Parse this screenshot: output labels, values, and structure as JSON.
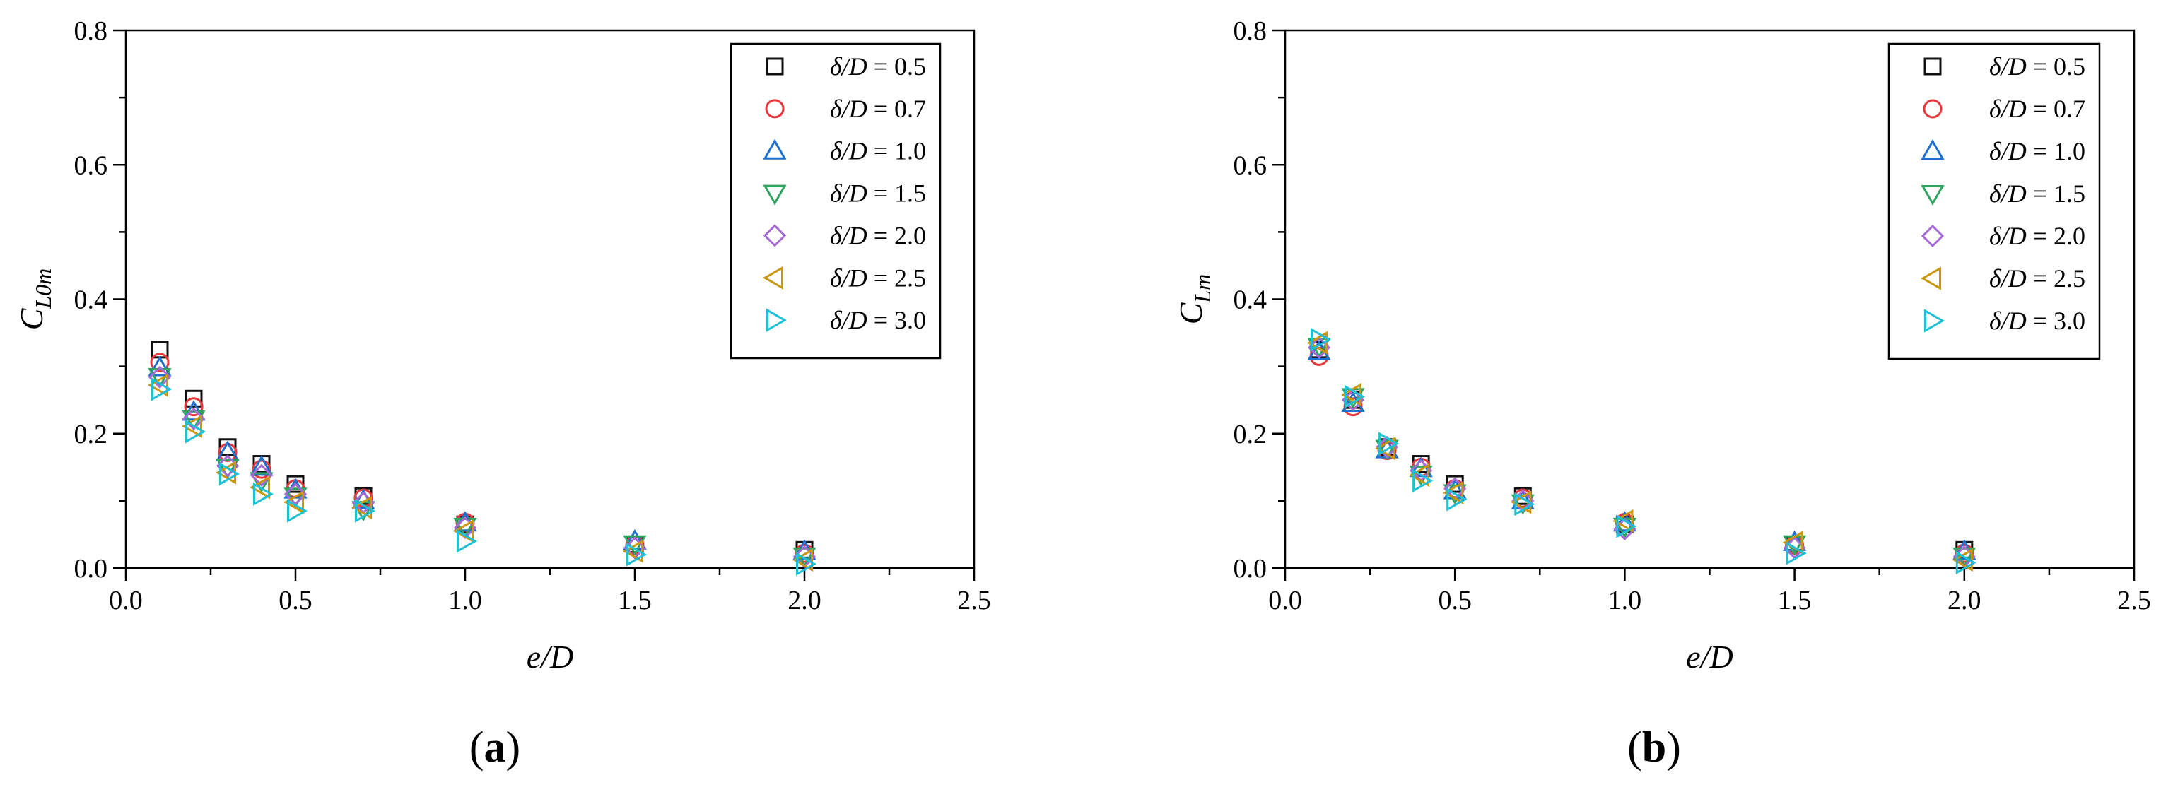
{
  "colors": {
    "d05": "#111111",
    "d07": "#e8383d",
    "d10": "#1f6fd1",
    "d15": "#2fa35f",
    "d20": "#a46ad6",
    "d25": "#c9960c",
    "d30": "#1fc0d6"
  },
  "legend_labels": [
    "δ/D = 0.5",
    "δ/D = 0.7",
    "δ/D = 1.0",
    "δ/D = 1.5",
    "δ/D = 2.0",
    "δ/D = 2.5",
    "δ/D = 3.0"
  ],
  "chart_data": [
    {
      "type": "scatter",
      "panel_label": "a",
      "xlabel": "e/D",
      "ylabel_main": "C",
      "ylabel_sub": "L0m",
      "xlim": [
        0.0,
        2.5
      ],
      "ylim": [
        0.0,
        0.8
      ],
      "xticks": [
        "0.0",
        "0.5",
        "1.0",
        "1.5",
        "2.0",
        "2.5"
      ],
      "yticks": [
        "0.0",
        "0.2",
        "0.4",
        "0.6",
        "0.8"
      ],
      "legend_position": "top-right",
      "x": [
        0.1,
        0.2,
        0.3,
        0.4,
        0.5,
        0.7,
        1.0,
        1.5,
        2.0
      ],
      "series": [
        {
          "name": "δ/D = 0.5",
          "marker": "square",
          "color_key": "d05",
          "values": [
            0.325,
            0.252,
            0.18,
            0.155,
            0.125,
            0.107,
            0.065,
            0.035,
            0.027
          ]
        },
        {
          "name": "δ/D = 0.7",
          "marker": "circle",
          "color_key": "d07",
          "values": [
            0.306,
            0.24,
            0.172,
            0.147,
            0.118,
            0.104,
            0.068,
            0.034,
            0.022
          ]
        },
        {
          "name": "δ/D = 1.0",
          "marker": "triangle-up",
          "color_key": "d10",
          "values": [
            0.298,
            0.232,
            0.172,
            0.15,
            0.116,
            0.1,
            0.067,
            0.04,
            0.025
          ]
        },
        {
          "name": "δ/D = 1.5",
          "marker": "triangle-down",
          "color_key": "d15",
          "values": [
            0.285,
            0.222,
            0.15,
            0.13,
            0.107,
            0.087,
            0.062,
            0.036,
            0.018
          ]
        },
        {
          "name": "δ/D = 2.0",
          "marker": "diamond",
          "color_key": "d20",
          "values": [
            0.284,
            0.222,
            0.152,
            0.138,
            0.11,
            0.097,
            0.06,
            0.03,
            0.017
          ]
        },
        {
          "name": "δ/D = 2.5",
          "marker": "triangle-left",
          "color_key": "d25",
          "values": [
            0.272,
            0.211,
            0.142,
            0.12,
            0.098,
            0.09,
            0.055,
            0.025,
            0.012
          ]
        },
        {
          "name": "δ/D = 3.0",
          "marker": "triangle-right",
          "color_key": "d30",
          "values": [
            0.266,
            0.203,
            0.14,
            0.11,
            0.085,
            0.085,
            0.04,
            0.02,
            0.006
          ]
        }
      ]
    },
    {
      "type": "scatter",
      "panel_label": "b",
      "xlabel": "e/D",
      "ylabel_main": "C",
      "ylabel_sub": "Lm",
      "xlim": [
        0.0,
        2.5
      ],
      "ylim": [
        0.0,
        0.8
      ],
      "xticks": [
        "0.0",
        "0.5",
        "1.0",
        "1.5",
        "2.0",
        "2.5"
      ],
      "yticks": [
        "0.0",
        "0.2",
        "0.4",
        "0.6",
        "0.8"
      ],
      "legend_position": "top-right",
      "x": [
        0.1,
        0.2,
        0.3,
        0.4,
        0.5,
        0.7,
        1.0,
        1.5,
        2.0
      ],
      "series": [
        {
          "name": "δ/D = 0.5",
          "marker": "square",
          "color_key": "d05",
          "values": [
            0.325,
            0.25,
            0.18,
            0.155,
            0.125,
            0.107,
            0.065,
            0.035,
            0.027
          ]
        },
        {
          "name": "δ/D = 0.7",
          "marker": "circle",
          "color_key": "d07",
          "values": [
            0.315,
            0.24,
            0.175,
            0.15,
            0.118,
            0.104,
            0.068,
            0.034,
            0.022
          ]
        },
        {
          "name": "δ/D = 1.0",
          "marker": "triangle-up",
          "color_key": "d10",
          "values": [
            0.322,
            0.245,
            0.176,
            0.148,
            0.115,
            0.1,
            0.067,
            0.038,
            0.025
          ]
        },
        {
          "name": "δ/D = 1.5",
          "marker": "triangle-down",
          "color_key": "d15",
          "values": [
            0.33,
            0.255,
            0.178,
            0.14,
            0.112,
            0.097,
            0.062,
            0.036,
            0.018
          ]
        },
        {
          "name": "δ/D = 2.0",
          "marker": "diamond",
          "color_key": "d20",
          "values": [
            0.328,
            0.25,
            0.18,
            0.145,
            0.118,
            0.1,
            0.058,
            0.03,
            0.017
          ]
        },
        {
          "name": "δ/D = 2.5",
          "marker": "triangle-left",
          "color_key": "d25",
          "values": [
            0.335,
            0.258,
            0.178,
            0.138,
            0.112,
            0.098,
            0.07,
            0.038,
            0.012
          ]
        },
        {
          "name": "δ/D = 3.0",
          "marker": "triangle-right",
          "color_key": "d30",
          "values": [
            0.34,
            0.255,
            0.185,
            0.13,
            0.102,
            0.095,
            0.062,
            0.022,
            0.008
          ]
        }
      ]
    }
  ]
}
